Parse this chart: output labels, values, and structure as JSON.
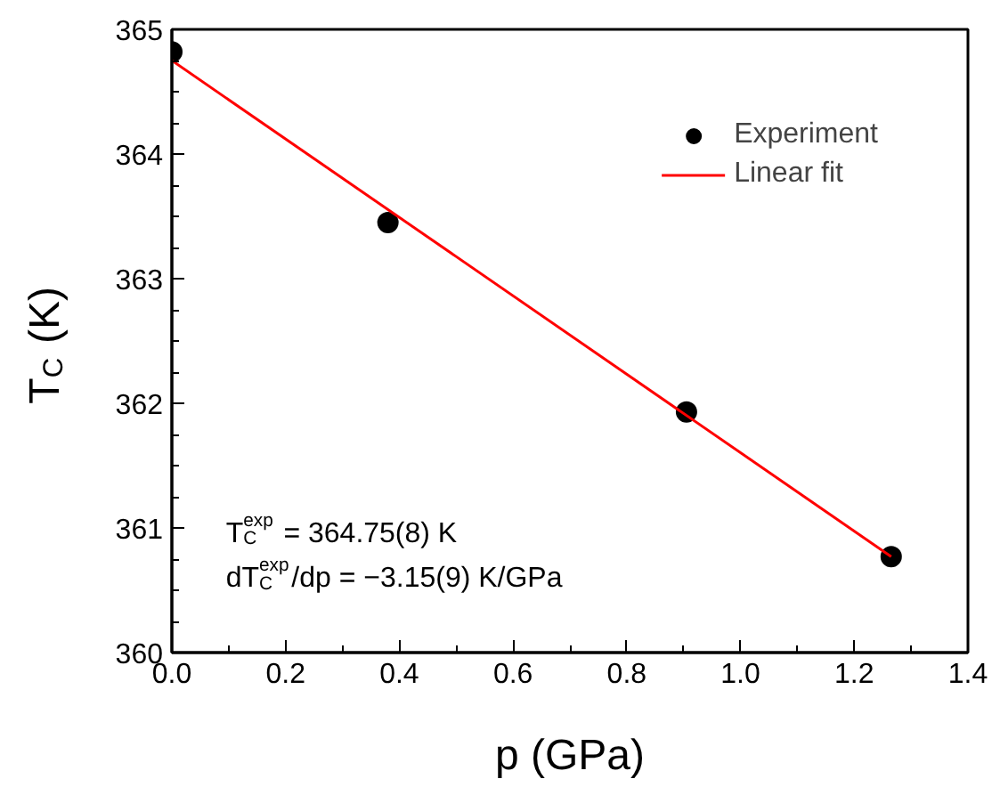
{
  "chart_data": {
    "type": "scatter",
    "xlabel": "p (GPa)",
    "ylabel": "T$_{C}$ (K)",
    "xlim": [
      0,
      1.4
    ],
    "xticks": [
      {
        "value": 0,
        "label": "0.0"
      },
      0.2,
      0.4,
      0.6,
      0.8,
      {
        "value": 1,
        "label": "1.0"
      },
      1.2,
      1.4
    ],
    "ylim": [
      360,
      365
    ],
    "yticks": [
      360,
      361,
      362,
      363,
      364,
      365
    ],
    "series": [
      {
        "name": "Experiment",
        "color": "#000000",
        "x": [
          0,
          0.38,
          0.905,
          1.265
        ],
        "values": [
          364.82,
          363.45,
          361.93,
          360.77
        ],
        "marker": "circle"
      },
      {
        "name": "Linear fit",
        "type": "line",
        "color": "#ff0000",
        "x": [
          0,
          1.265
        ],
        "values": [
          364.75,
          360.77
        ],
        "line_style": "solid",
        "marker": "none"
      }
    ],
    "annotations": [
      "T$_{C}$$^{exp}$ = 364.75(8) K",
      "dT$_{C}$$^{exp}$/dp = −3.15(9) K/GPa"
    ],
    "legend": "top right",
    "grid": false
  }
}
